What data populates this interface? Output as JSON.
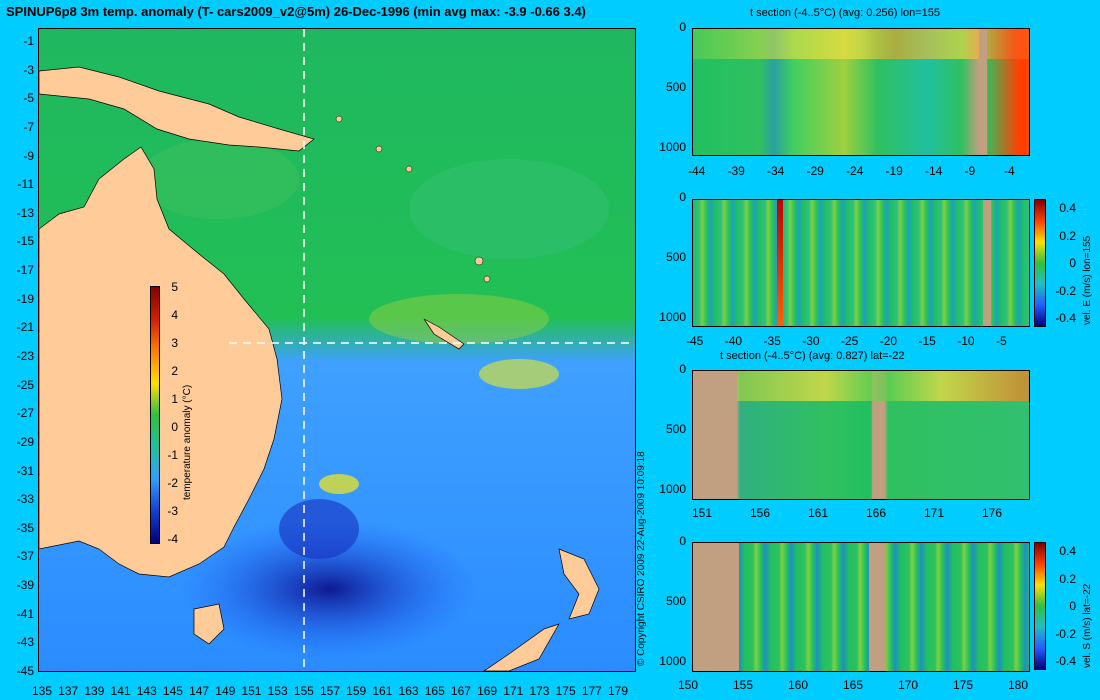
{
  "map": {
    "title": "SPINUP6p8 3m temp. anomaly (T- cars2009_v2@5m) 26-Dec-1996 (min avg max: -3.9 -0.66 3.4)",
    "lat_ticks": [
      "-1",
      "-3",
      "-5",
      "-7",
      "-9",
      "-11",
      "-13",
      "-15",
      "-17",
      "-19",
      "-21",
      "-23",
      "-25",
      "-27",
      "-29",
      "-31",
      "-33",
      "-35",
      "-37",
      "-39",
      "-41",
      "-43",
      "-45"
    ],
    "lon_ticks": [
      "135",
      "137",
      "139",
      "141",
      "143",
      "145",
      "147",
      "149",
      "151",
      "153",
      "155",
      "157",
      "159",
      "161",
      "163",
      "165",
      "167",
      "169",
      "171",
      "173",
      "175",
      "177",
      "179"
    ],
    "colorbar": {
      "label": "temperature anomaly (°C)",
      "ticks": [
        "5",
        "4",
        "3",
        "2",
        "1",
        "0",
        "-1",
        "-2",
        "-3",
        "-4"
      ]
    },
    "section_line_lon": 155,
    "section_line_lat": -22
  },
  "credit": "© Copyright CSIRO 2009   22-Aug-2009 10:09:18",
  "panels": [
    {
      "title": "t section (-4..5°C) (avg: 0.256) lon=155",
      "x_ticks": [
        "-44",
        "-39",
        "-34",
        "-29",
        "-24",
        "-19",
        "-14",
        "-9",
        "-4"
      ],
      "y_ticks": [
        "0",
        "500",
        "1000"
      ]
    },
    {
      "title": "",
      "x_ticks": [
        "-45",
        "-40",
        "-35",
        "-30",
        "-25",
        "-20",
        "-15",
        "-10",
        "-5"
      ],
      "y_ticks": [
        "0",
        "500",
        "1000"
      ],
      "colorbar": {
        "label": "vel. E (m/s) lon=155",
        "ticks": [
          "0.4",
          "0.2",
          "0",
          "-0.2",
          "-0.4"
        ]
      }
    },
    {
      "title": "t section (-4..5°C) (avg: 0.827) lat=-22",
      "x_ticks": [
        "151",
        "156",
        "161",
        "166",
        "171",
        "176"
      ],
      "y_ticks": [
        "0",
        "500",
        "1000"
      ]
    },
    {
      "title": "",
      "x_ticks": [
        "150",
        "155",
        "160",
        "165",
        "170",
        "175",
        "180"
      ],
      "y_ticks": [
        "0",
        "500",
        "1000"
      ],
      "colorbar": {
        "label": "vel. S (m/s) lat=-22",
        "ticks": [
          "0.4",
          "0.2",
          "0",
          "-0.2",
          "-0.4"
        ]
      }
    }
  ]
}
